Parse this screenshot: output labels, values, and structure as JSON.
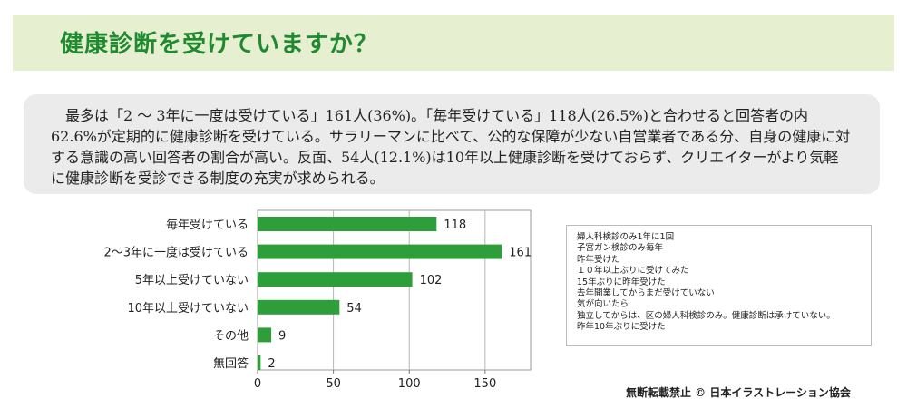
{
  "title": "健康診断を受けていますか？",
  "summary": "最多は「2 ～ 3年に一度は受けている」161人(36%)。「毎年受けている」118人(26.5%)と合わせると回答者の内62.6%が定期的に健康診断を受けている。サラリーマンに比べて、公的な保障が少ない自営業者である分、自身の健康に対する意識の高い回答者の割合が高い。反面、54人(12.1%)は10年以上健康診断を受けておらず、クリエイターがより気軽に健康診断を受診できる制度の充実が求められる。",
  "chart_data": {
    "type": "bar",
    "orientation": "horizontal",
    "categories": [
      "毎年受けている",
      "2～3年に一度は受けている",
      "5年以上受けていない",
      "10年以上受けていない",
      "その他",
      "無回答"
    ],
    "values": [
      118,
      161,
      102,
      54,
      9,
      2
    ],
    "xlim": [
      0,
      180
    ],
    "xticks": [
      0,
      50,
      100,
      150
    ],
    "grid": true,
    "bar_color": "#2e9e3a"
  },
  "other_answers": [
    "婦人科検診のみ1年に1回",
    "子宮ガン検診のみ毎年",
    "昨年受けた",
    "１０年以上ぶりに受けてみた",
    "15年ぶりに昨年受けた",
    "去年開業してからまだ受けていない",
    "気が向いたら",
    "独立してからは、区の婦人科検診のみ。健康診断は承けていない。",
    "昨年10年ぶりに受けた"
  ],
  "credit": "無断転載禁止 © 日本イラストレーション協会"
}
